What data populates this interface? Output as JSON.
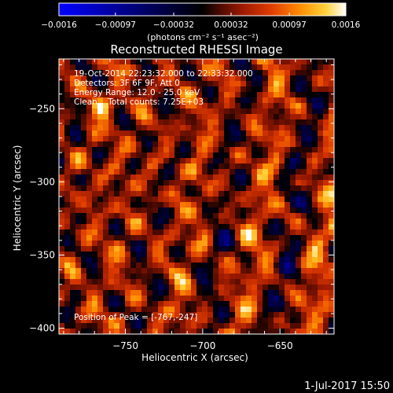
{
  "chart_data": {
    "type": "heatmap",
    "title": "Reconstructed RHESSI Image",
    "xlabel": "Heliocentric X (arcsec)",
    "ylabel": "Heliocentric Y (arcsec)",
    "xlim": [
      -793,
      -615
    ],
    "ylim": [
      -404,
      -216
    ],
    "x_ticks": [
      -750,
      -700,
      -650
    ],
    "x_tick_labels": [
      "−750",
      "−700",
      "−650"
    ],
    "y_ticks": [
      -250,
      -300,
      -350,
      -400
    ],
    "y_tick_labels": [
      "−250",
      "−300",
      "−350",
      "−400"
    ],
    "colorbar": {
      "range": [
        -0.0016,
        0.0016
      ],
      "ticks": [
        -0.0016,
        -0.00097,
        -0.00032,
        0.00032,
        0.00097,
        0.0016
      ],
      "tick_labels": [
        "−0.0016",
        "−0.00097",
        "−0.00032",
        "0.00032",
        "0.00097",
        "0.0016"
      ],
      "unit_label": "(photons cm⁻² s⁻¹ asec⁻²)",
      "stops": [
        "#0000ff",
        "#000000",
        "#4b0a00",
        "#9c1a00",
        "#e03c00",
        "#ff8c00",
        "#ffd23c",
        "#ffffff"
      ]
    },
    "annotations": [
      "19-Oct-2014 22:23:32.000 to 22:33:32.000",
      "Detectors: 3F 6F 9F, Att 0",
      "Energy Range: 12.0 - 25.0 keV",
      "Clean    Total counts: 7.25E+03"
    ],
    "peak_label": "Position of Peak = [-767,-247]",
    "peak_position": [
      -767,
      -247
    ]
  },
  "footer": {
    "timestamp": "1-Jul-2017 15:50"
  }
}
